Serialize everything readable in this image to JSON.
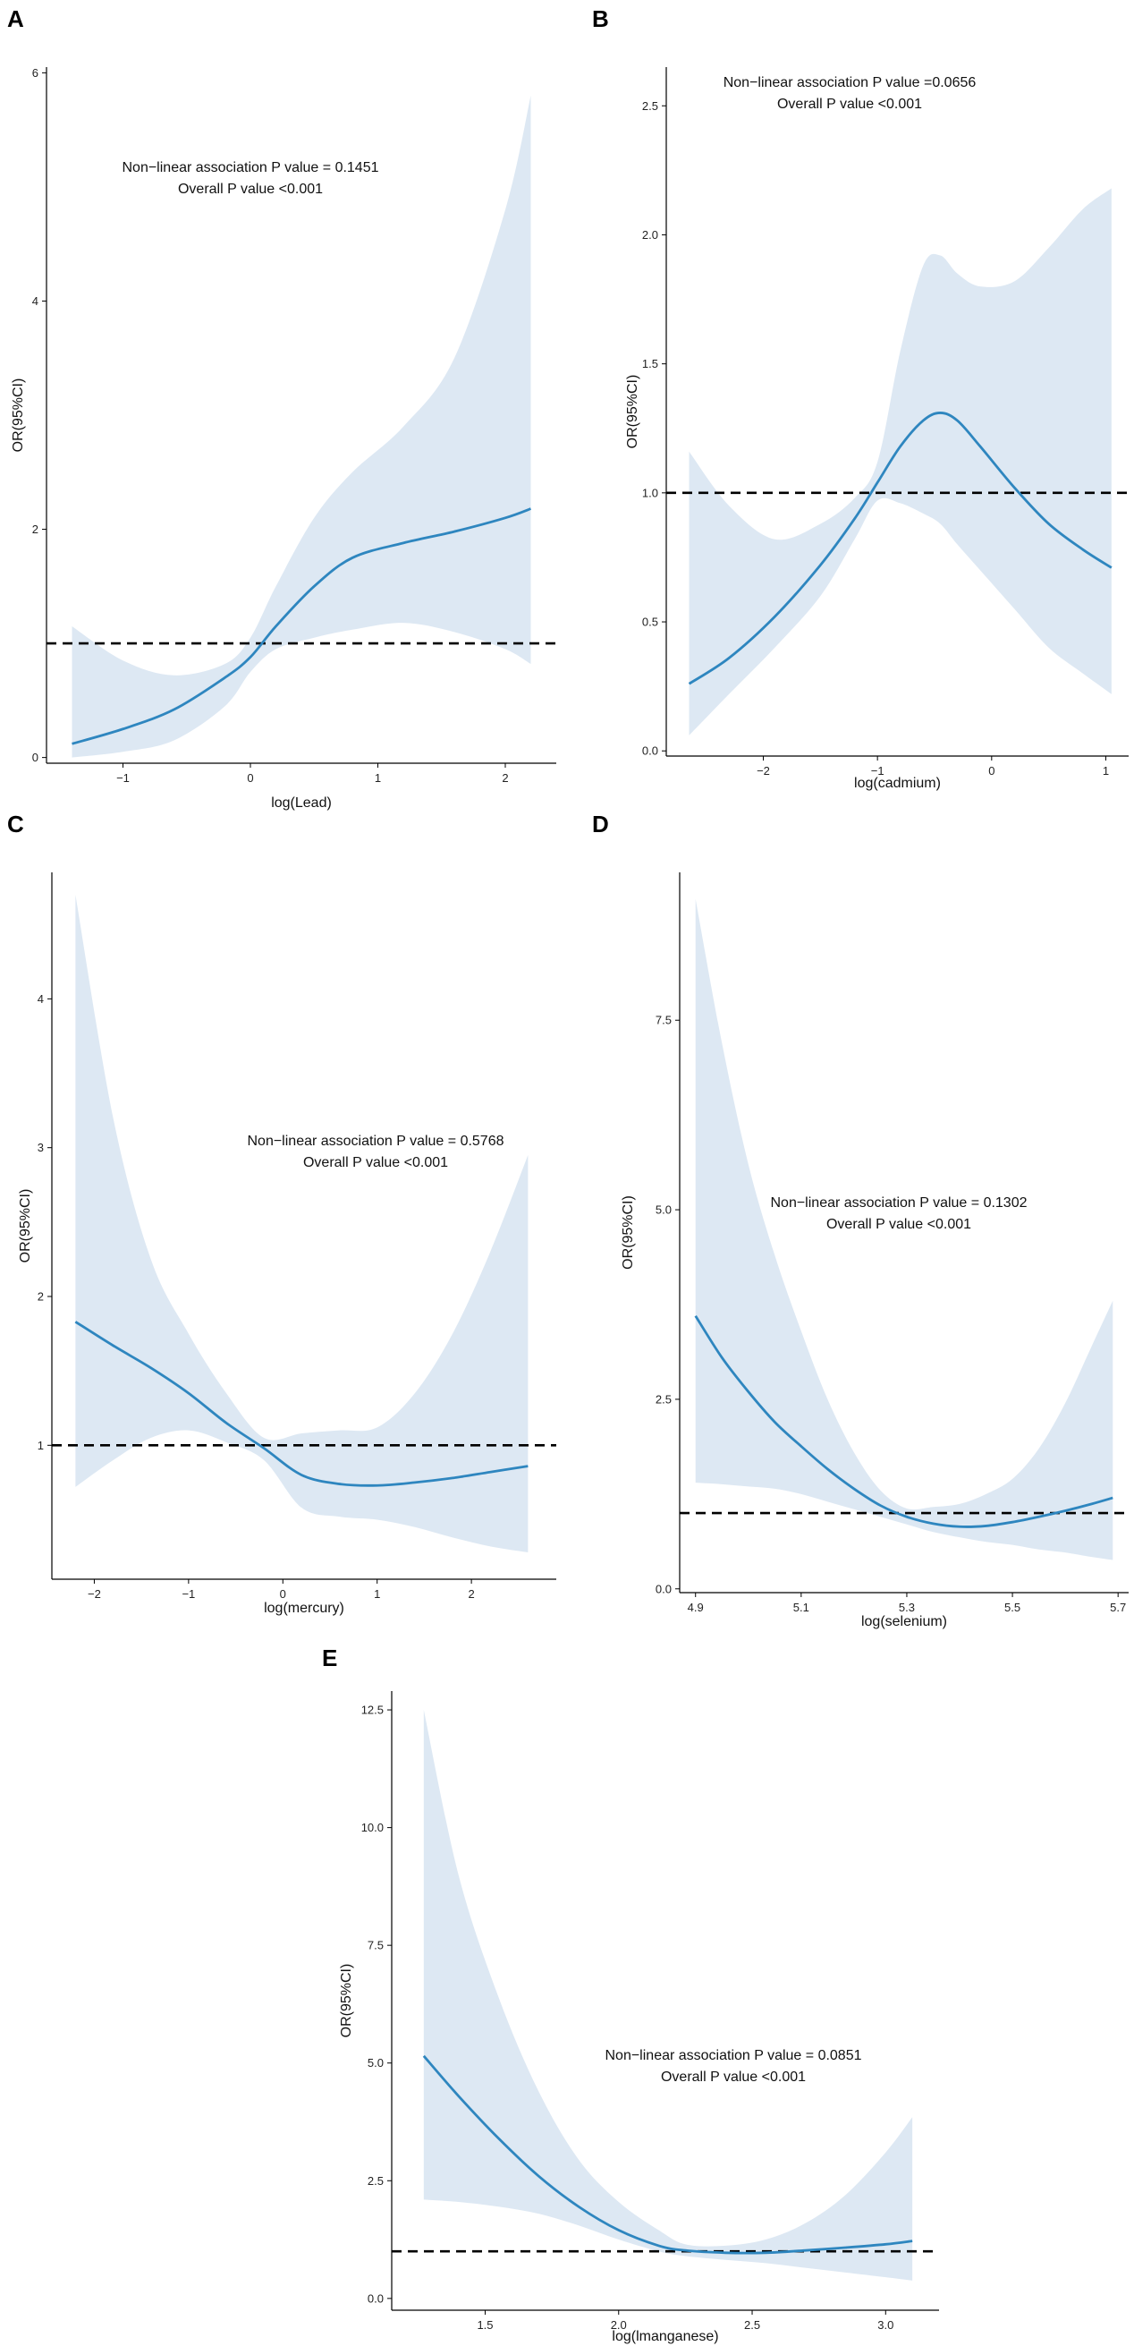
{
  "chart_data": [
    {
      "panel": "A",
      "type": "line",
      "xlabel": "log(Lead)",
      "ylabel": "OR(95%CI)",
      "xlim": [
        -1.6,
        2.4
      ],
      "ylim": [
        -0.05,
        6.05
      ],
      "xticks": [
        -1,
        0,
        1,
        2
      ],
      "yticks": [
        0,
        2,
        4,
        6
      ],
      "reference_line": 1,
      "annotation": [
        "Non−linear association P value = 0.1451",
        "Overall P value <0.001"
      ],
      "x": [
        -1.4,
        -1.0,
        -0.6,
        -0.2,
        0.0,
        0.2,
        0.5,
        0.8,
        1.2,
        1.6,
        2.0,
        2.2
      ],
      "y": [
        0.12,
        0.25,
        0.42,
        0.7,
        0.88,
        1.15,
        1.5,
        1.75,
        1.88,
        1.98,
        2.1,
        2.18
      ],
      "lower": [
        0.0,
        0.05,
        0.15,
        0.45,
        0.75,
        0.95,
        1.05,
        1.12,
        1.18,
        1.1,
        0.95,
        0.82
      ],
      "upper": [
        1.15,
        0.85,
        0.72,
        0.82,
        1.05,
        1.5,
        2.1,
        2.5,
        2.9,
        3.5,
        4.8,
        5.8
      ]
    },
    {
      "panel": "B",
      "type": "line",
      "xlabel": "log(cadmium)",
      "ylabel": "OR(95%CI)",
      "xlim": [
        -2.85,
        1.2
      ],
      "ylim": [
        -0.02,
        2.65
      ],
      "xticks": [
        -2,
        -1,
        0,
        1
      ],
      "yticks": [
        0.0,
        0.5,
        1.0,
        1.5,
        2.0,
        2.5
      ],
      "ytick_labels": [
        "0.0",
        "0.5",
        "1.0",
        "1.5",
        "2.0",
        "2.5"
      ],
      "reference_line": 1,
      "annotation": [
        "Non−linear association P value =0.0656",
        "Overall P value <0.001"
      ],
      "x": [
        -2.65,
        -2.3,
        -1.9,
        -1.5,
        -1.2,
        -1.0,
        -0.8,
        -0.6,
        -0.45,
        -0.3,
        -0.1,
        0.2,
        0.5,
        0.8,
        1.05
      ],
      "y": [
        0.26,
        0.36,
        0.52,
        0.72,
        0.9,
        1.04,
        1.18,
        1.28,
        1.31,
        1.28,
        1.18,
        1.02,
        0.88,
        0.78,
        0.71
      ],
      "lower": [
        0.06,
        0.22,
        0.4,
        0.6,
        0.82,
        0.97,
        0.96,
        0.92,
        0.88,
        0.8,
        0.7,
        0.55,
        0.4,
        0.3,
        0.22
      ],
      "upper": [
        1.16,
        0.95,
        0.82,
        0.88,
        0.98,
        1.12,
        1.55,
        1.88,
        1.92,
        1.85,
        1.8,
        1.82,
        1.95,
        2.1,
        2.18
      ]
    },
    {
      "panel": "C",
      "type": "line",
      "xlabel": "log(mercury)",
      "ylabel": "OR(95%CI)",
      "xlim": [
        -2.45,
        2.9
      ],
      "ylim": [
        0.1,
        4.85
      ],
      "xticks": [
        -2,
        -1,
        0,
        1,
        2
      ],
      "yticks": [
        1,
        2,
        3,
        4
      ],
      "reference_line": 1,
      "annotation": [
        "Non−linear association P value = 0.5768",
        "Overall P value <0.001"
      ],
      "x": [
        -2.2,
        -1.8,
        -1.4,
        -1.0,
        -0.6,
        -0.2,
        0.2,
        0.6,
        1.0,
        1.4,
        1.8,
        2.2,
        2.6
      ],
      "y": [
        1.83,
        1.67,
        1.52,
        1.35,
        1.15,
        0.98,
        0.8,
        0.74,
        0.73,
        0.75,
        0.78,
        0.82,
        0.86
      ],
      "lower": [
        0.72,
        0.9,
        1.05,
        1.1,
        1.02,
        0.9,
        0.58,
        0.52,
        0.5,
        0.45,
        0.38,
        0.32,
        0.28
      ],
      "upper": [
        4.7,
        3.2,
        2.25,
        1.75,
        1.35,
        1.05,
        1.08,
        1.1,
        1.12,
        1.35,
        1.75,
        2.3,
        2.95
      ]
    },
    {
      "panel": "D",
      "type": "line",
      "xlabel": "log(selenium)",
      "ylabel": "OR(95%CI)",
      "xlim": [
        4.87,
        5.72
      ],
      "ylim": [
        -0.05,
        9.45
      ],
      "xticks": [
        4.9,
        5.1,
        5.3,
        5.5,
        5.7
      ],
      "xtick_labels": [
        "4.9",
        "5.1",
        "5.3",
        "5.5",
        "5.7"
      ],
      "yticks": [
        0.0,
        2.5,
        5.0,
        7.5
      ],
      "ytick_labels": [
        "0.0",
        "2.5",
        "5.0",
        "7.5"
      ],
      "reference_line": 1,
      "annotation": [
        "Non−linear association P value = 0.1302",
        "Overall P value <0.001"
      ],
      "x": [
        4.9,
        4.95,
        5.0,
        5.05,
        5.1,
        5.15,
        5.2,
        5.25,
        5.3,
        5.35,
        5.4,
        5.45,
        5.5,
        5.55,
        5.6,
        5.65,
        5.69
      ],
      "y": [
        3.6,
        3.05,
        2.6,
        2.2,
        1.88,
        1.58,
        1.32,
        1.1,
        0.95,
        0.86,
        0.82,
        0.83,
        0.88,
        0.95,
        1.03,
        1.12,
        1.2
      ],
      "lower": [
        1.4,
        1.38,
        1.35,
        1.32,
        1.25,
        1.15,
        1.05,
        0.95,
        0.85,
        0.75,
        0.68,
        0.62,
        0.58,
        0.52,
        0.48,
        0.42,
        0.38
      ],
      "upper": [
        9.1,
        7.2,
        5.6,
        4.4,
        3.4,
        2.5,
        1.8,
        1.3,
        1.06,
        1.08,
        1.12,
        1.25,
        1.45,
        1.85,
        2.45,
        3.2,
        3.8
      ]
    },
    {
      "panel": "E",
      "type": "line",
      "xlabel": "log(lmanganese)",
      "ylabel": "OR(95%CI)",
      "xlim": [
        1.15,
        3.2
      ],
      "ylim": [
        -0.25,
        12.9
      ],
      "xticks": [
        1.5,
        2.0,
        2.5,
        3.0
      ],
      "xtick_labels": [
        "1.5",
        "2.0",
        "2.5",
        "3.0"
      ],
      "yticks": [
        0.0,
        2.5,
        5.0,
        7.5,
        10.0,
        12.5
      ],
      "ytick_labels": [
        "0.0",
        "2.5",
        "5.0",
        "7.5",
        "10.0",
        "12.5"
      ],
      "reference_line": 1,
      "annotation": [
        "Non−linear association P value = 0.0851",
        "Overall P value <0.001"
      ],
      "x": [
        1.27,
        1.4,
        1.55,
        1.7,
        1.85,
        2.0,
        2.15,
        2.25,
        2.4,
        2.55,
        2.7,
        2.85,
        3.0,
        3.1
      ],
      "y": [
        5.15,
        4.3,
        3.4,
        2.6,
        1.95,
        1.45,
        1.12,
        1.02,
        0.97,
        0.97,
        1.02,
        1.08,
        1.15,
        1.22
      ],
      "lower": [
        2.1,
        2.05,
        1.95,
        1.8,
        1.55,
        1.25,
        1.0,
        0.9,
        0.82,
        0.75,
        0.65,
        0.55,
        0.45,
        0.38
      ],
      "upper": [
        12.5,
        9.0,
        6.4,
        4.4,
        2.95,
        2.05,
        1.45,
        1.15,
        1.12,
        1.25,
        1.6,
        2.2,
        3.1,
        3.85
      ]
    }
  ]
}
